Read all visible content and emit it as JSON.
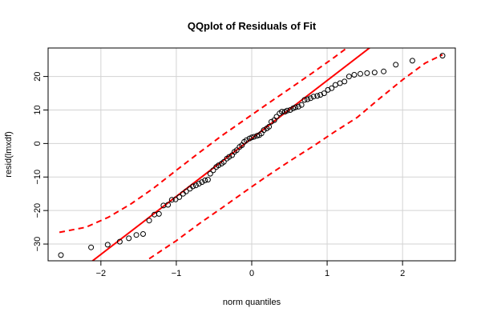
{
  "chart_data": {
    "type": "scatter",
    "title": "QQplot of Residuals of Fit",
    "xlabel": "norm quantiles",
    "ylabel": "resid(lmxdf)",
    "xlim": [
      -2.7,
      2.7
    ],
    "ylim": [
      -35,
      28.5
    ],
    "x_ticks": [
      -2,
      -1,
      0,
      1,
      2
    ],
    "y_ticks": [
      -30,
      -20,
      -10,
      0,
      10,
      20
    ],
    "grid": true,
    "colors": {
      "points": "#000000",
      "reference": "#ff0000",
      "envelope": "#ff0000",
      "grid": "#d3d3d3"
    },
    "points": {
      "x": [
        -2.53,
        -2.13,
        -1.91,
        -1.75,
        -1.63,
        -1.53,
        -1.44,
        -1.36,
        -1.29,
        -1.23,
        -1.17,
        -1.11,
        -1.06,
        -1.01,
        -0.96,
        -0.91,
        -0.87,
        -0.82,
        -0.78,
        -0.74,
        -0.7,
        -0.66,
        -0.62,
        -0.58,
        -0.55,
        -0.51,
        -0.47,
        -0.44,
        -0.4,
        -0.37,
        -0.33,
        -0.3,
        -0.26,
        -0.23,
        -0.2,
        -0.16,
        -0.13,
        -0.1,
        -0.07,
        -0.03,
        0.0,
        0.03,
        0.07,
        0.1,
        0.13,
        0.16,
        0.2,
        0.23,
        0.26,
        0.3,
        0.33,
        0.37,
        0.4,
        0.44,
        0.47,
        0.51,
        0.55,
        0.58,
        0.62,
        0.66,
        0.7,
        0.74,
        0.78,
        0.82,
        0.87,
        0.91,
        0.96,
        1.01,
        1.06,
        1.11,
        1.17,
        1.23,
        1.29,
        1.36,
        1.44,
        1.53,
        1.63,
        1.75,
        1.91,
        2.13,
        2.53
      ],
      "y": [
        -33.3,
        -31.0,
        -30.2,
        -29.3,
        -28.3,
        -27.3,
        -27.0,
        -23.0,
        -21.2,
        -21.0,
        -18.5,
        -18.3,
        -16.8,
        -16.7,
        -16.0,
        -15.0,
        -14.3,
        -13.5,
        -12.8,
        -12.5,
        -12.0,
        -11.5,
        -11.0,
        -10.8,
        -9.0,
        -8.0,
        -7.0,
        -6.5,
        -6.0,
        -5.5,
        -4.5,
        -4.0,
        -3.5,
        -2.5,
        -2.0,
        -1.0,
        -0.5,
        0.5,
        1.0,
        1.5,
        1.8,
        2.0,
        2.3,
        2.5,
        3.0,
        4.0,
        4.5,
        5.0,
        6.5,
        7.0,
        8.0,
        9.0,
        9.5,
        9.5,
        9.8,
        10.0,
        10.5,
        10.8,
        11.0,
        11.5,
        13.0,
        13.2,
        13.5,
        14.0,
        14.2,
        14.5,
        15.0,
        16.0,
        16.5,
        17.5,
        18.0,
        18.5,
        20.0,
        20.5,
        20.8,
        21.0,
        21.2,
        21.5,
        23.5,
        24.7,
        26.2
      ]
    },
    "reference_line": {
      "intercept": 1.5,
      "slope": 17.3
    },
    "envelope": {
      "upper": {
        "x": [
          -2.55,
          -2.2,
          -1.9,
          -1.6,
          -1.3,
          -1.0,
          -0.7,
          -0.4,
          -0.1,
          0.2,
          0.5,
          0.8,
          1.1,
          1.35
        ],
        "y": [
          -26.5,
          -25.0,
          -22.0,
          -18.0,
          -13.3,
          -8.0,
          -2.8,
          2.3,
          7.0,
          11.7,
          16.3,
          21.0,
          25.8,
          30.0
        ]
      },
      "lower": {
        "x": [
          -1.9,
          -1.6,
          -1.3,
          -1.0,
          -0.7,
          -0.4,
          -0.1,
          0.2,
          0.5,
          0.8,
          1.1,
          1.4,
          1.7,
          2.0,
          2.3,
          2.53
        ],
        "y": [
          -42.0,
          -38.0,
          -33.5,
          -29.0,
          -24.0,
          -19.3,
          -14.5,
          -9.8,
          -5.3,
          -1.0,
          3.5,
          7.8,
          13.5,
          19.0,
          24.0,
          26.5
        ]
      }
    }
  }
}
